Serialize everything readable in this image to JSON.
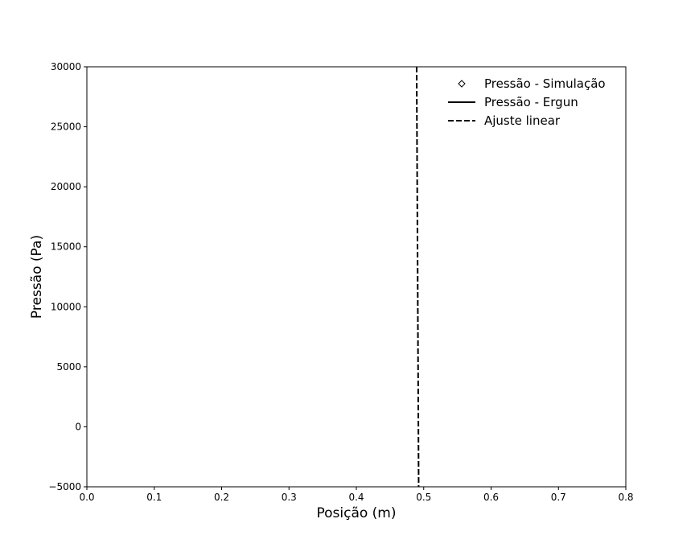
{
  "chart_data": {
    "type": "line",
    "title": "",
    "xlabel": "Posição (m)",
    "ylabel": "Pressão (Pa)",
    "xlim": [
      0.0,
      0.8
    ],
    "ylim": [
      -5000,
      30000
    ],
    "x_ticks": [
      0.0,
      0.1,
      0.2,
      0.3,
      0.4,
      0.5,
      0.6,
      0.7,
      0.8
    ],
    "x_tick_labels": [
      "0.0",
      "0.1",
      "0.2",
      "0.3",
      "0.4",
      "0.5",
      "0.6",
      "0.7",
      "0.8"
    ],
    "y_ticks": [
      -5000,
      0,
      5000,
      10000,
      15000,
      20000,
      25000,
      30000
    ],
    "y_tick_labels": [
      "−5000",
      "0",
      "5000",
      "10000",
      "15000",
      "20000",
      "25000",
      "30000"
    ],
    "grid": false,
    "legend_position": "top-right",
    "series": [
      {
        "name": "Pressão - Simulação",
        "style": "marker-diamond",
        "color": "#000000",
        "x": [],
        "y": []
      },
      {
        "name": "Pressão - Ergun",
        "style": "solid",
        "color": "#000000",
        "x": [],
        "y": []
      },
      {
        "name": "Ajuste linear",
        "style": "dashed",
        "color": "#000000",
        "x": [
          0.4895,
          0.4925
        ],
        "y": [
          30000,
          -5000
        ]
      }
    ]
  }
}
